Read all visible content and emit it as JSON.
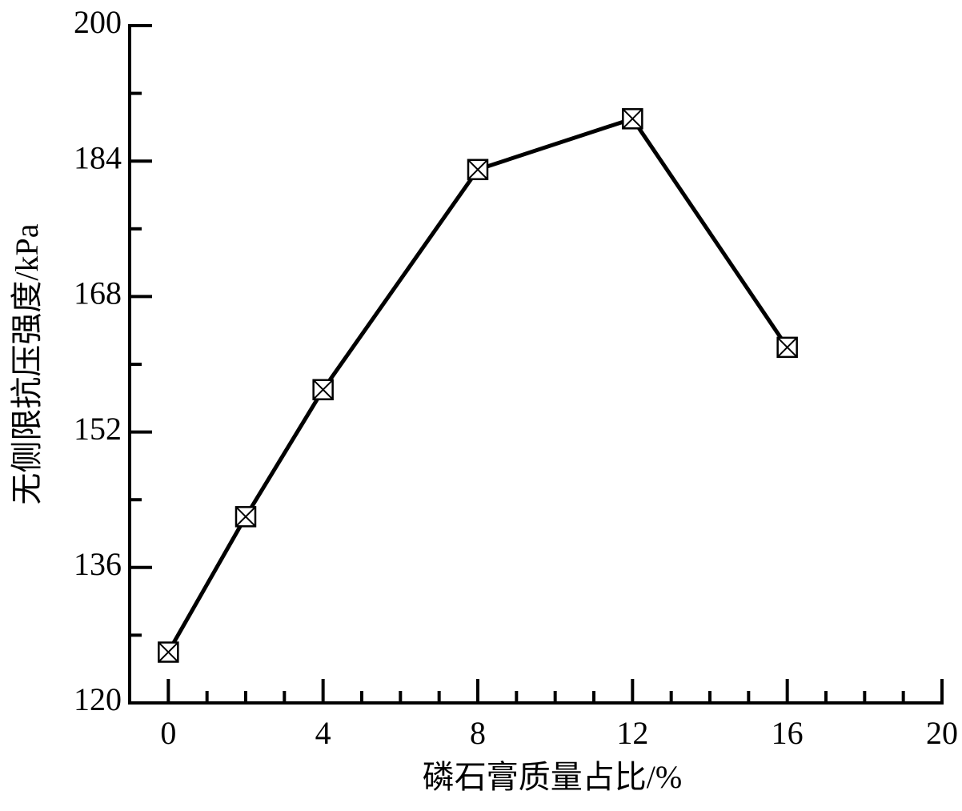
{
  "chart_data": {
    "type": "line",
    "x_label": "磷石膏质量占比/%",
    "y_label": "无侧限抗压强度/kPa",
    "x": [
      0,
      2,
      4,
      8,
      12,
      16
    ],
    "series": [
      {
        "values": [
          126,
          142,
          157,
          183,
          189,
          162
        ],
        "color": "#000000",
        "marker": "square-x"
      }
    ],
    "xlim": [
      -1,
      20
    ],
    "ylim": [
      120,
      200
    ],
    "xticks": [
      0,
      4,
      8,
      12,
      16,
      20
    ],
    "yticks": [
      120,
      136,
      152,
      168,
      184,
      200
    ],
    "x_minor_per_major": 4,
    "y_minor_per_major": 2,
    "grid": false
  }
}
